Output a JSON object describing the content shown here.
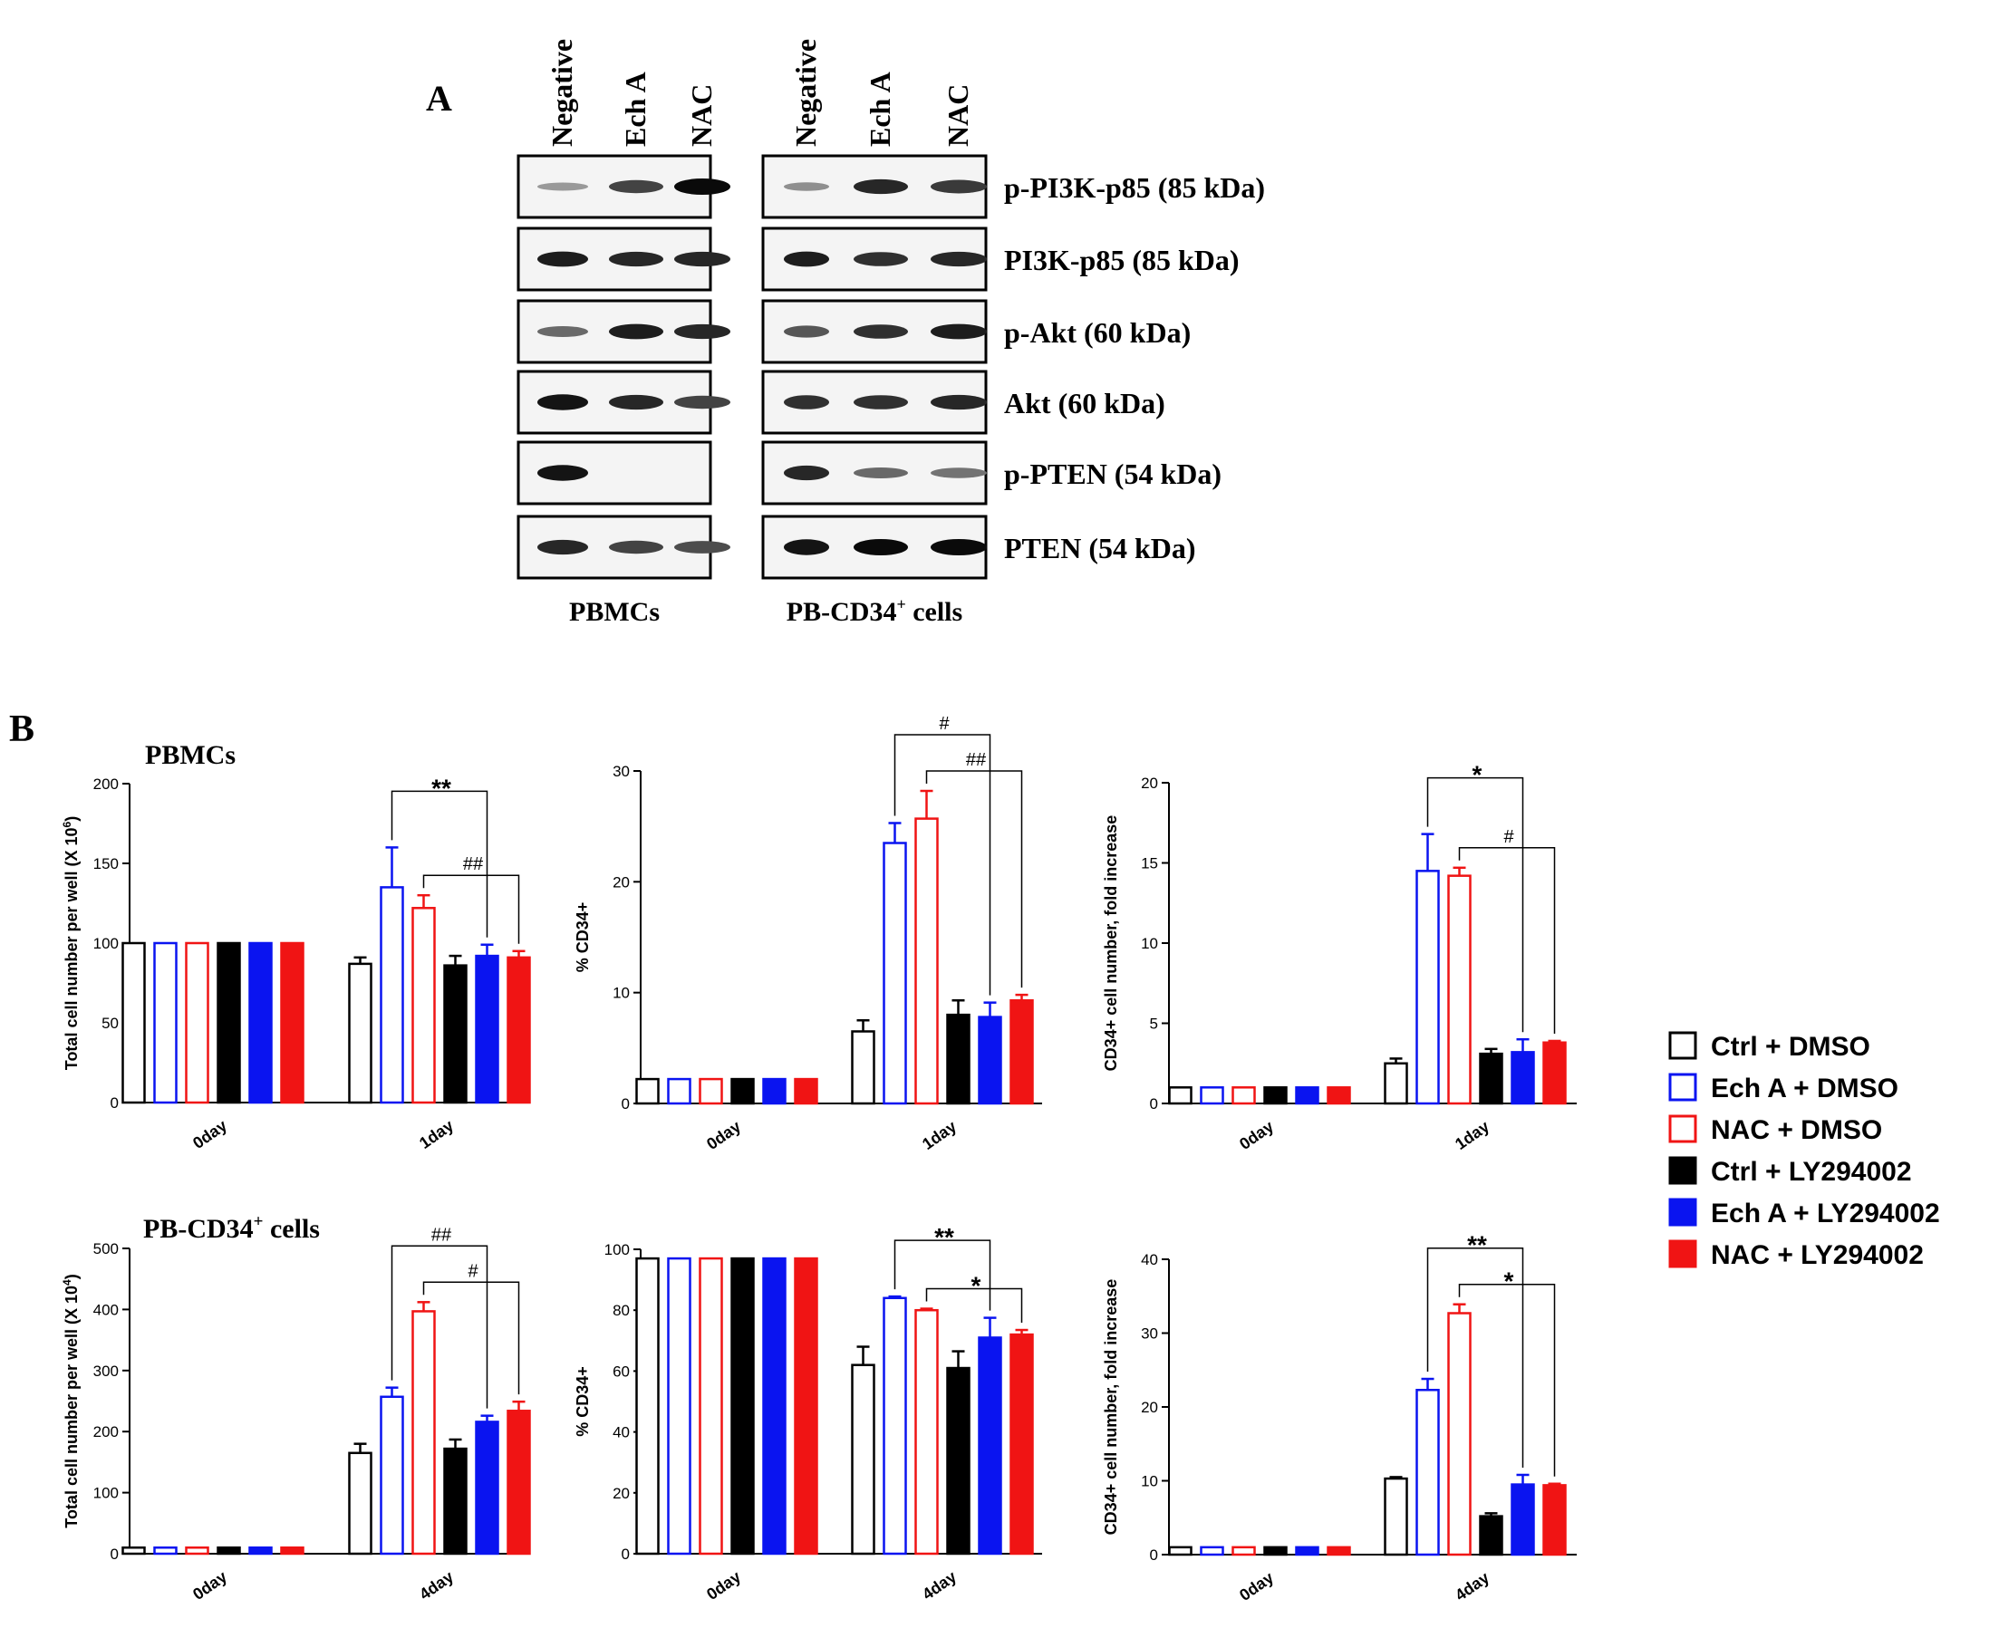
{
  "panel_labels": {
    "a": "A",
    "b": "B"
  },
  "western_blot": {
    "lanes": [
      "Negative",
      "Ech A",
      "NAC"
    ],
    "groups": [
      "PBMCs",
      "PB-CD34⁺ cells"
    ],
    "proteins": [
      {
        "label": "p-PI3K-p85 (85 kDa)",
        "pbmc": [
          0.25,
          0.7,
          1.0
        ],
        "cd34": [
          0.3,
          0.85,
          0.75
        ]
      },
      {
        "label": "PI3K-p85 (85 kDa)",
        "pbmc": [
          0.9,
          0.85,
          0.85
        ],
        "cd34": [
          0.9,
          0.8,
          0.85
        ]
      },
      {
        "label": "p-Akt (60 kDa)",
        "pbmc": [
          0.5,
          0.9,
          0.85
        ],
        "cd34": [
          0.6,
          0.8,
          0.9
        ]
      },
      {
        "label": "Akt (60 kDa)",
        "pbmc": [
          0.95,
          0.85,
          0.7
        ],
        "cd34": [
          0.8,
          0.8,
          0.85
        ]
      },
      {
        "label": "p-PTEN (54 kDa)",
        "pbmc": [
          0.95,
          0.0,
          0.0
        ],
        "cd34": [
          0.85,
          0.5,
          0.45
        ]
      },
      {
        "label": "PTEN (54 kDa)",
        "pbmc": [
          0.85,
          0.7,
          0.65
        ],
        "cd34": [
          0.95,
          1.0,
          1.0
        ]
      }
    ]
  },
  "legend": [
    {
      "label": "Ctrl + DMSO",
      "color": "#000000",
      "filled": false
    },
    {
      "label": "Ech A + DMSO",
      "color": "#0a14f0",
      "filled": false
    },
    {
      "label": "NAC + DMSO",
      "color": "#f01414",
      "filled": false
    },
    {
      "label": "Ctrl + LY294002",
      "color": "#000000",
      "filled": true
    },
    {
      "label": "Ech A + LY294002",
      "color": "#0a14f0",
      "filled": true
    },
    {
      "label": "NAC + LY294002",
      "color": "#f01414",
      "filled": true
    }
  ],
  "row_titles": {
    "top": "PBMCs",
    "bottom_main": "PB-CD34",
    "bottom_sup": "+",
    "bottom_rest": " cells"
  },
  "chart_data": [
    {
      "type": "bar",
      "title": "PBMCs",
      "ylabel": "Total cell number per well (X 10",
      "ylabel_exp": "6",
      "ylabel_tail": ")",
      "ylim": [
        0,
        200
      ],
      "yticks": [
        0,
        50,
        100,
        150,
        200
      ],
      "categories": [
        "0day",
        "1day"
      ],
      "series": [
        {
          "name": "Ctrl + DMSO",
          "values": [
            100,
            87
          ],
          "errors": [
            0,
            4
          ]
        },
        {
          "name": "Ech A + DMSO",
          "values": [
            100,
            135
          ],
          "errors": [
            0,
            25
          ]
        },
        {
          "name": "NAC + DMSO",
          "values": [
            100,
            122
          ],
          "errors": [
            0,
            8
          ]
        },
        {
          "name": "Ctrl + LY294002",
          "values": [
            100,
            86
          ],
          "errors": [
            0,
            6
          ]
        },
        {
          "name": "Ech A + LY294002",
          "values": [
            100,
            92
          ],
          "errors": [
            0,
            7
          ]
        },
        {
          "name": "NAC + LY294002",
          "values": [
            100,
            91
          ],
          "errors": [
            0,
            4
          ]
        }
      ],
      "significance": [
        {
          "label": "**",
          "from": 1,
          "to": 4,
          "level": 1,
          "size": "large"
        },
        {
          "label": "##",
          "from": 2,
          "to": 5,
          "level": 0,
          "size": "small"
        }
      ]
    },
    {
      "type": "bar",
      "ylabel": "% CD34+",
      "ylabel_exp": "",
      "ylabel_tail": "",
      "ylim": [
        0,
        30
      ],
      "yticks": [
        0,
        10,
        20,
        30
      ],
      "categories": [
        "0day",
        "1day"
      ],
      "series": [
        {
          "name": "Ctrl + DMSO",
          "values": [
            2.2,
            6.5
          ],
          "errors": [
            0,
            1
          ]
        },
        {
          "name": "Ech A + DMSO",
          "values": [
            2.2,
            23.5
          ],
          "errors": [
            0,
            1.8
          ]
        },
        {
          "name": "NAC + DMSO",
          "values": [
            2.2,
            25.7
          ],
          "errors": [
            0,
            2.5
          ]
        },
        {
          "name": "Ctrl + LY294002",
          "values": [
            2.2,
            8
          ],
          "errors": [
            0,
            1.3
          ]
        },
        {
          "name": "Ech A + LY294002",
          "values": [
            2.2,
            7.8
          ],
          "errors": [
            0,
            1.3
          ]
        },
        {
          "name": "NAC + LY294002",
          "values": [
            2.2,
            9.3
          ],
          "errors": [
            0,
            0.5
          ]
        }
      ],
      "significance": [
        {
          "label": "#",
          "from": 1,
          "to": 4,
          "level": 1,
          "size": "small"
        },
        {
          "label": "##",
          "from": 2,
          "to": 5,
          "level": 0,
          "size": "small"
        }
      ]
    },
    {
      "type": "bar",
      "ylabel": "CD34+ cell number, fold increase",
      "ylabel_exp": "",
      "ylabel_tail": "",
      "ylim": [
        0,
        20
      ],
      "yticks": [
        0,
        5,
        10,
        15,
        20
      ],
      "categories": [
        "0day",
        "1day"
      ],
      "series": [
        {
          "name": "Ctrl + DMSO",
          "values": [
            1,
            2.5
          ],
          "errors": [
            0,
            0.3
          ]
        },
        {
          "name": "Ech A + DMSO",
          "values": [
            1,
            14.5
          ],
          "errors": [
            0,
            2.3
          ]
        },
        {
          "name": "NAC + DMSO",
          "values": [
            1,
            14.2
          ],
          "errors": [
            0,
            0.5
          ]
        },
        {
          "name": "Ctrl + LY294002",
          "values": [
            1,
            3.1
          ],
          "errors": [
            0,
            0.3
          ]
        },
        {
          "name": "Ech A + LY294002",
          "values": [
            1,
            3.2
          ],
          "errors": [
            0,
            0.8
          ]
        },
        {
          "name": "NAC + LY294002",
          "values": [
            1,
            3.8
          ],
          "errors": [
            0,
            0.1
          ]
        }
      ],
      "significance": [
        {
          "label": "*",
          "from": 1,
          "to": 4,
          "level": 1,
          "size": "large"
        },
        {
          "label": "#",
          "from": 2,
          "to": 5,
          "level": 0,
          "size": "small"
        }
      ]
    },
    {
      "type": "bar",
      "title": "PB-CD34+ cells",
      "ylabel": "Total cell number per well (X 10",
      "ylabel_exp": "4",
      "ylabel_tail": ")",
      "ylim": [
        0,
        500
      ],
      "yticks": [
        0,
        100,
        200,
        300,
        400,
        500
      ],
      "categories": [
        "0day",
        "4day"
      ],
      "series": [
        {
          "name": "Ctrl + DMSO",
          "values": [
            10,
            165
          ],
          "errors": [
            0,
            15
          ]
        },
        {
          "name": "Ech A + DMSO",
          "values": [
            10,
            257
          ],
          "errors": [
            0,
            15
          ]
        },
        {
          "name": "NAC + DMSO",
          "values": [
            10,
            397
          ],
          "errors": [
            0,
            15
          ]
        },
        {
          "name": "Ctrl + LY294002",
          "values": [
            10,
            172
          ],
          "errors": [
            0,
            15
          ]
        },
        {
          "name": "Ech A + LY294002",
          "values": [
            10,
            216
          ],
          "errors": [
            0,
            10
          ]
        },
        {
          "name": "NAC + LY294002",
          "values": [
            10,
            234
          ],
          "errors": [
            0,
            15
          ]
        }
      ],
      "significance": [
        {
          "label": "##",
          "from": 1,
          "to": 4,
          "level": 1,
          "size": "small"
        },
        {
          "label": "#",
          "from": 2,
          "to": 5,
          "level": 0,
          "size": "small"
        }
      ]
    },
    {
      "type": "bar",
      "ylabel": "% CD34+",
      "ylabel_exp": "",
      "ylabel_tail": "",
      "ylim": [
        0,
        100
      ],
      "yticks": [
        0,
        20,
        40,
        60,
        80,
        100
      ],
      "categories": [
        "0day",
        "4day"
      ],
      "series": [
        {
          "name": "Ctrl + DMSO",
          "values": [
            97,
            62
          ],
          "errors": [
            0,
            6
          ]
        },
        {
          "name": "Ech A + DMSO",
          "values": [
            97,
            84
          ],
          "errors": [
            0,
            0.5
          ]
        },
        {
          "name": "NAC + DMSO",
          "values": [
            97,
            80
          ],
          "errors": [
            0,
            0.5
          ]
        },
        {
          "name": "Ctrl + LY294002",
          "values": [
            97,
            61
          ],
          "errors": [
            0,
            5.5
          ]
        },
        {
          "name": "Ech A + LY294002",
          "values": [
            97,
            71
          ],
          "errors": [
            0,
            6.5
          ]
        },
        {
          "name": "NAC + LY294002",
          "values": [
            97,
            72
          ],
          "errors": [
            0,
            1.5
          ]
        }
      ],
      "significance": [
        {
          "label": "**",
          "from": 1,
          "to": 4,
          "level": 1,
          "size": "large"
        },
        {
          "label": "*",
          "from": 2,
          "to": 5,
          "level": 0,
          "size": "large"
        }
      ]
    },
    {
      "type": "bar",
      "ylabel": "CD34+ cell number, fold increase",
      "ylabel_exp": "",
      "ylabel_tail": "",
      "ylim": [
        0,
        40
      ],
      "yticks": [
        0,
        10,
        20,
        30,
        40
      ],
      "categories": [
        "0day",
        "4day"
      ],
      "series": [
        {
          "name": "Ctrl + DMSO",
          "values": [
            1,
            10.3
          ],
          "errors": [
            0,
            0.2
          ]
        },
        {
          "name": "Ech A + DMSO",
          "values": [
            1,
            22.3
          ],
          "errors": [
            0,
            1.5
          ]
        },
        {
          "name": "NAC + DMSO",
          "values": [
            1,
            32.7
          ],
          "errors": [
            0,
            1.2
          ]
        },
        {
          "name": "Ctrl + LY294002",
          "values": [
            1,
            5.2
          ],
          "errors": [
            0,
            0.4
          ]
        },
        {
          "name": "Ech A + LY294002",
          "values": [
            1,
            9.5
          ],
          "errors": [
            0,
            1.3
          ]
        },
        {
          "name": "NAC + LY294002",
          "values": [
            1,
            9.4
          ],
          "errors": [
            0,
            0.2
          ]
        }
      ],
      "significance": [
        {
          "label": "**",
          "from": 1,
          "to": 4,
          "level": 1,
          "size": "large"
        },
        {
          "label": "*",
          "from": 2,
          "to": 5,
          "level": 0,
          "size": "large"
        }
      ]
    }
  ]
}
